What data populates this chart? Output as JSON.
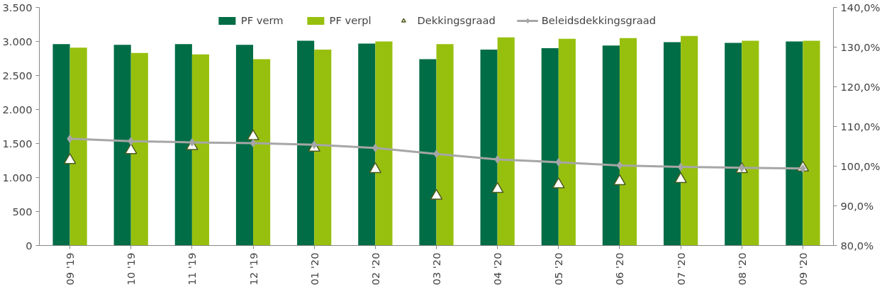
{
  "chart_data": {
    "type": "bar",
    "categories": [
      "09 '19",
      "10 '19",
      "11 '19",
      "12 '19",
      "01 '20",
      "02 '20",
      "03 '20",
      "04 '20",
      "05 '20",
      "06 '20",
      "07 '20",
      "08 '20",
      "09 '20"
    ],
    "series": [
      {
        "name": "PF verm",
        "color": "#006d46",
        "values": [
          2960,
          2950,
          2960,
          2950,
          3010,
          2970,
          2740,
          2880,
          2900,
          2940,
          2990,
          2980,
          3000
        ]
      },
      {
        "name": "PF verpl",
        "color": "#97c00e",
        "values": [
          2910,
          2830,
          2810,
          2740,
          2880,
          3000,
          2960,
          3060,
          3040,
          3050,
          3080,
          3010,
          3010
        ]
      },
      {
        "name": "Dekkingsgraad",
        "type": "scatter",
        "axis": "y2",
        "marker": "triangle",
        "color": "#4e5b1f",
        "values": [
          101.5,
          104.0,
          105.0,
          107.5,
          104.6,
          99.2,
          92.5,
          94.2,
          95.4,
          96.2,
          96.7,
          99.2,
          99.6
        ]
      },
      {
        "name": "Beleidsdekkingsgraad",
        "type": "line",
        "axis": "y2",
        "marker": "diamond",
        "color": "#a6a6a6",
        "values": [
          106.9,
          106.3,
          106.0,
          105.8,
          105.4,
          104.6,
          103.1,
          101.7,
          101.0,
          100.2,
          99.8,
          99.6,
          99.4
        ]
      }
    ],
    "ylim": [
      0,
      3500
    ],
    "yticks": [
      0,
      {
        "value": 500,
        "label": "500"
      },
      {
        "value": 1000,
        "label": "1.000"
      },
      {
        "value": 1500,
        "label": "1.500"
      },
      {
        "value": 2000,
        "label": "2.000"
      },
      {
        "value": 2500,
        "label": "2.500"
      },
      {
        "value": 3000,
        "label": "3.000"
      },
      {
        "value": 3500,
        "label": "3.500"
      }
    ],
    "y2lim": [
      80,
      140
    ],
    "y2ticks": [
      {
        "value": 80,
        "label": "80,0%"
      },
      {
        "value": 90,
        "label": "90,0%"
      },
      {
        "value": 100,
        "label": "100,0%"
      },
      {
        "value": 110,
        "label": "110,0%"
      },
      {
        "value": 120,
        "label": "120,0%"
      },
      {
        "value": 130,
        "label": "130,0%"
      },
      {
        "value": 140,
        "label": "140,0%"
      }
    ],
    "legend": "top",
    "grid": false
  }
}
